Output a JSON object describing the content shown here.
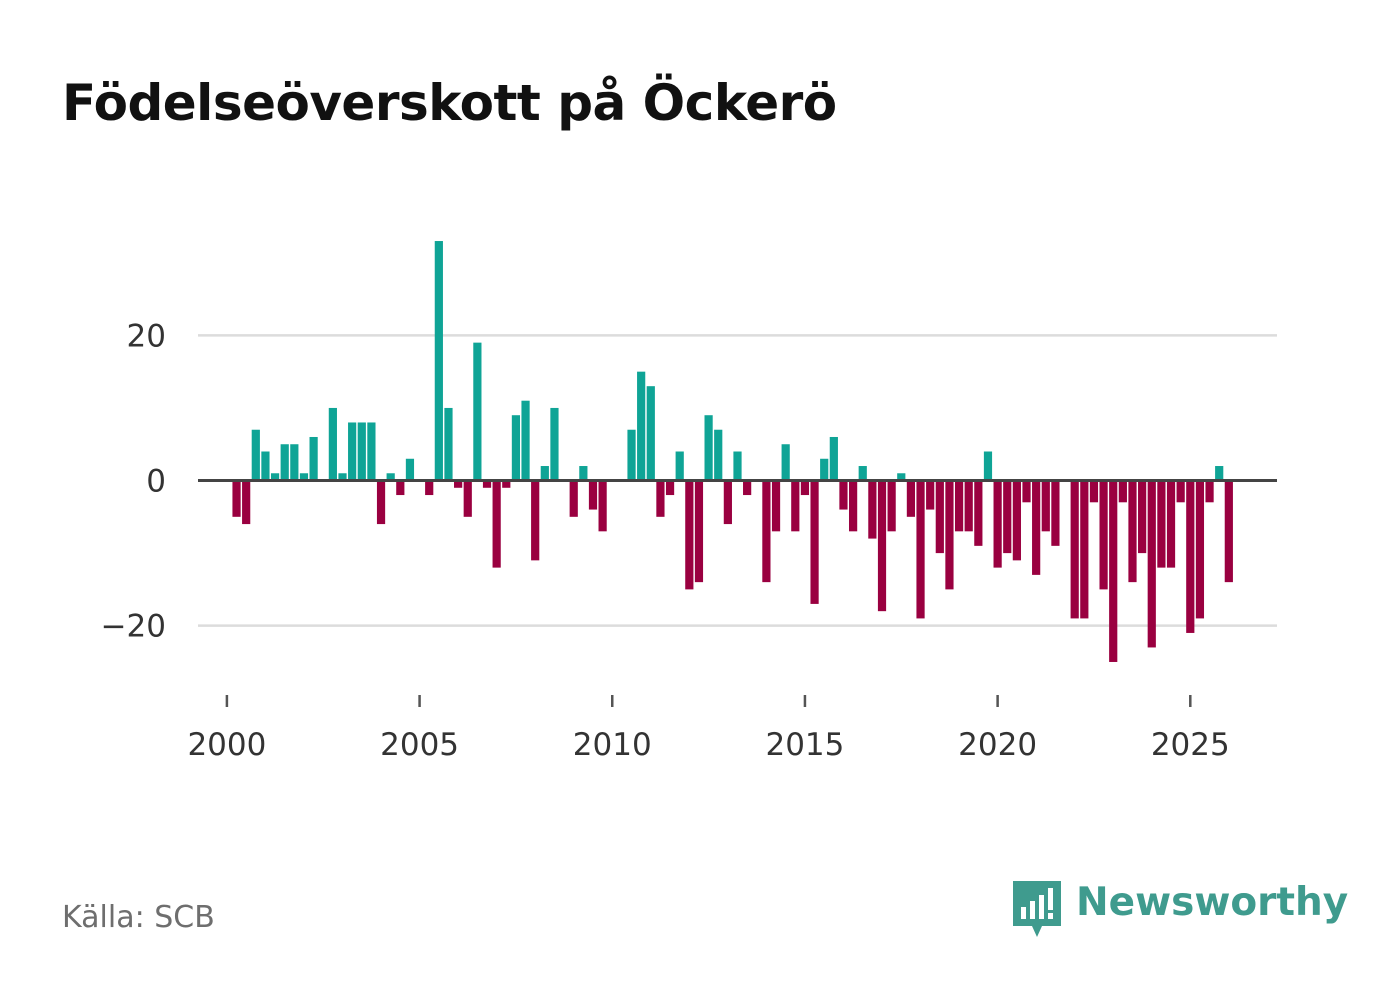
{
  "title": "Födelseöverskott på Öckerö",
  "source": "Källa: SCB",
  "brand": {
    "name": "Newsworthy",
    "logo_icon": "bar-chart-speech-bubble-icon"
  },
  "colors": {
    "positive": "#0fa496",
    "negative": "#9a0040",
    "gridline": "#dcdcdc",
    "zero_line": "#444444",
    "brand": "#3f9b8e"
  },
  "chart_data": {
    "type": "bar",
    "title": "Födelseöverskott på Öckerö",
    "xlabel": "",
    "ylabel": "",
    "x_axis": {
      "min": 1999.25,
      "max": 2027.25,
      "ticks": [
        2000,
        2005,
        2010,
        2015,
        2020,
        2025
      ],
      "tick_labels": [
        "2000",
        "2005",
        "2010",
        "2015",
        "2020",
        "2025"
      ]
    },
    "y_axis": {
      "min": -29,
      "max": 37,
      "ticks": [
        -20,
        0,
        20
      ],
      "tick_labels": [
        "−20",
        "0",
        "20"
      ]
    },
    "grid": true,
    "frequency": "quarterly",
    "start": 2000.25,
    "step": 0.25,
    "values": [
      -5,
      -6,
      7,
      4,
      1,
      5,
      5,
      1,
      6,
      0,
      10,
      1,
      8,
      8,
      8,
      -6,
      1,
      -2,
      3,
      0,
      -2,
      33,
      10,
      -1,
      -5,
      19,
      -1,
      -12,
      -1,
      9,
      11,
      -11,
      2,
      10,
      0,
      -5,
      2,
      -4,
      -7,
      0,
      0,
      7,
      15,
      13,
      -5,
      -2,
      4,
      -15,
      -14,
      9,
      7,
      -6,
      4,
      -2,
      0,
      -14,
      -7,
      5,
      -7,
      -2,
      -17,
      3,
      6,
      -4,
      -7,
      2,
      -8,
      -18,
      -7,
      1,
      -5,
      -19,
      -4,
      -10,
      -15,
      -7,
      -7,
      -9,
      4,
      -12,
      -10,
      -11,
      -3,
      -13,
      -7,
      -9,
      0,
      -19,
      -19,
      -3,
      -15,
      -25,
      -3,
      -14,
      -10,
      -23,
      -12,
      -12,
      -3,
      -21,
      -19,
      -3,
      2,
      -14
    ]
  }
}
